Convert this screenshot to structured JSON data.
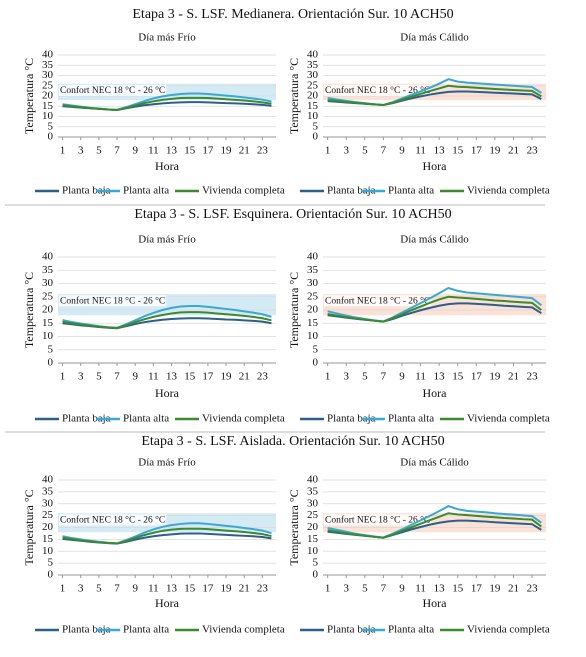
{
  "chart_data": [
    {
      "type": "line",
      "section_title": "Etapa 3 - S. LSF. Medianera. Orientación Sur. 10 ACH50",
      "title": "Día más Frío",
      "xlabel": "Hora",
      "ylabel": "Temperatura °C",
      "x": [
        1,
        2,
        3,
        4,
        5,
        6,
        7,
        8,
        9,
        10,
        11,
        12,
        13,
        14,
        15,
        16,
        17,
        18,
        19,
        20,
        21,
        22,
        23,
        24
      ],
      "xlim": [
        0.5,
        24.5
      ],
      "xticks": [
        1,
        3,
        5,
        7,
        9,
        11,
        13,
        15,
        17,
        19,
        21,
        23
      ],
      "ylim": [
        0,
        40
      ],
      "yticks": [
        0,
        5,
        10,
        15,
        20,
        25,
        30,
        35,
        40
      ],
      "grid": true,
      "band": {
        "range": [
          18,
          26
        ],
        "label": "Confort NEC 18 °C - 26 °C",
        "color": "#d4ebf6"
      },
      "series": [
        {
          "name": "Planta baja",
          "color": "#2e5f8a",
          "values": [
            15,
            14.7,
            14.3,
            14,
            13.7,
            13.4,
            13.2,
            14,
            14.8,
            15.5,
            16,
            16.4,
            16.7,
            16.9,
            17,
            17,
            16.9,
            16.7,
            16.5,
            16.4,
            16.2,
            16,
            15.7,
            15.2
          ]
        },
        {
          "name": "Planta alta",
          "color": "#3ba7d4",
          "values": [
            16,
            15.4,
            14.8,
            14.3,
            13.9,
            13.5,
            13.3,
            14.5,
            16,
            17.5,
            18.8,
            19.8,
            20.5,
            21,
            21.2,
            21.2,
            21,
            20.6,
            20.2,
            19.8,
            19.3,
            18.8,
            18.2,
            17.3
          ]
        },
        {
          "name": "Vivienda completa",
          "color": "#3c8a2e",
          "values": [
            15.5,
            15,
            14.5,
            14.1,
            13.8,
            13.4,
            13.2,
            14.2,
            15.4,
            16.5,
            17.4,
            18.1,
            18.6,
            19,
            19.1,
            19.1,
            19,
            18.7,
            18.4,
            18.1,
            17.8,
            17.4,
            16.9,
            16.2
          ]
        }
      ]
    },
    {
      "type": "line",
      "title": "Día más Cálido",
      "xlabel": "Hora",
      "ylabel": "Temperatura °C",
      "x": [
        1,
        2,
        3,
        4,
        5,
        6,
        7,
        8,
        9,
        10,
        11,
        12,
        13,
        14,
        15,
        16,
        17,
        18,
        19,
        20,
        21,
        22,
        23,
        24
      ],
      "xlim": [
        0.5,
        24.5
      ],
      "xticks": [
        1,
        3,
        5,
        7,
        9,
        11,
        13,
        15,
        17,
        19,
        21,
        23
      ],
      "ylim": [
        0,
        40
      ],
      "yticks": [
        0,
        5,
        10,
        15,
        20,
        25,
        30,
        35,
        40
      ],
      "grid": true,
      "band": {
        "range": [
          18,
          26
        ],
        "label": "Confort NEC 18 °C - 26 °C",
        "color": "#fbe1d6"
      },
      "series": [
        {
          "name": "Planta baja",
          "color": "#2e5f8a",
          "values": [
            17.5,
            17.2,
            16.8,
            16.5,
            16.2,
            15.9,
            15.6,
            16.5,
            17.7,
            18.8,
            19.8,
            20.7,
            21.4,
            22,
            22.2,
            22.2,
            22,
            21.8,
            21.6,
            21.4,
            21.2,
            21,
            20.8,
            18.5
          ]
        },
        {
          "name": "Planta alta",
          "color": "#3ba7d4",
          "values": [
            19,
            18.3,
            17.6,
            17,
            16.5,
            16,
            15.6,
            17,
            18.8,
            20.5,
            22.2,
            24,
            26,
            28.2,
            27,
            26.5,
            26.2,
            25.9,
            25.6,
            25.3,
            25,
            24.7,
            24.4,
            21.5
          ]
        },
        {
          "name": "Vivienda completa",
          "color": "#3c8a2e",
          "values": [
            18,
            17.6,
            17.1,
            16.7,
            16.3,
            15.9,
            15.6,
            16.7,
            18.2,
            19.6,
            21,
            22.4,
            23.7,
            25,
            24.5,
            24.3,
            24,
            23.7,
            23.4,
            23.2,
            22.9,
            22.7,
            22.5,
            19.8
          ]
        }
      ]
    },
    {
      "type": "line",
      "section_title": "Etapa 3 - S. LSF. Esquinera. Orientación Sur. 10 ACH50",
      "title": "Día más Frío",
      "xlabel": "Hora",
      "ylabel": "Temperatura °C",
      "x": [
        1,
        2,
        3,
        4,
        5,
        6,
        7,
        8,
        9,
        10,
        11,
        12,
        13,
        14,
        15,
        16,
        17,
        18,
        19,
        20,
        21,
        22,
        23,
        24
      ],
      "xlim": [
        0.5,
        24.5
      ],
      "xticks": [
        1,
        3,
        5,
        7,
        9,
        11,
        13,
        15,
        17,
        19,
        21,
        23
      ],
      "ylim": [
        0,
        40
      ],
      "yticks": [
        0,
        5,
        10,
        15,
        20,
        25,
        30,
        35,
        40
      ],
      "grid": true,
      "band": {
        "range": [
          18,
          26
        ],
        "label": "Confort NEC 18 °C - 26 °C",
        "color": "#d4ebf6"
      },
      "series": [
        {
          "name": "Planta baja",
          "color": "#2e5f8a",
          "values": [
            15,
            14.6,
            14.2,
            13.9,
            13.6,
            13.3,
            13.1,
            13.9,
            14.7,
            15.4,
            15.9,
            16.3,
            16.6,
            16.8,
            16.9,
            16.9,
            16.8,
            16.6,
            16.4,
            16.3,
            16.1,
            15.9,
            15.6,
            15
          ]
        },
        {
          "name": "Planta alta",
          "color": "#3ba7d4",
          "values": [
            16.2,
            15.5,
            14.9,
            14.4,
            13.9,
            13.5,
            13.3,
            14.6,
            16.1,
            17.6,
            18.9,
            20,
            20.8,
            21.3,
            21.5,
            21.5,
            21.2,
            20.8,
            20.4,
            20,
            19.5,
            19,
            18.4,
            17.4
          ]
        },
        {
          "name": "Vivienda completa",
          "color": "#3c8a2e",
          "values": [
            15.5,
            15,
            14.5,
            14.1,
            13.7,
            13.4,
            13.2,
            14.2,
            15.4,
            16.5,
            17.4,
            18.1,
            18.7,
            19.1,
            19.2,
            19.2,
            19,
            18.7,
            18.4,
            18.1,
            17.8,
            17.4,
            16.9,
            16.1
          ]
        }
      ]
    },
    {
      "type": "line",
      "title": "Día más Cálido",
      "xlabel": "Hora",
      "ylabel": "Temperatura °C",
      "x": [
        1,
        2,
        3,
        4,
        5,
        6,
        7,
        8,
        9,
        10,
        11,
        12,
        13,
        14,
        15,
        16,
        17,
        18,
        19,
        20,
        21,
        22,
        23,
        24
      ],
      "xlim": [
        0.5,
        24.5
      ],
      "xticks": [
        1,
        3,
        5,
        7,
        9,
        11,
        13,
        15,
        17,
        19,
        21,
        23
      ],
      "ylim": [
        0,
        40
      ],
      "yticks": [
        0,
        5,
        10,
        15,
        20,
        25,
        30,
        35,
        40
      ],
      "grid": true,
      "band": {
        "range": [
          18,
          26
        ],
        "label": "Confort NEC 18 °C - 26 °C",
        "color": "#fbe1d6"
      },
      "series": [
        {
          "name": "Planta baja",
          "color": "#2e5f8a",
          "values": [
            18,
            17.6,
            17.1,
            16.7,
            16.3,
            16,
            15.6,
            16.6,
            17.8,
            18.9,
            19.9,
            20.8,
            21.6,
            22.2,
            22.5,
            22.5,
            22.3,
            22.1,
            21.9,
            21.6,
            21.4,
            21.2,
            21,
            18.8
          ]
        },
        {
          "name": "Planta alta",
          "color": "#3ba7d4",
          "values": [
            19.5,
            18.7,
            17.9,
            17.2,
            16.6,
            16.1,
            15.7,
            17.2,
            19,
            20.8,
            22.6,
            24.4,
            26.3,
            28.3,
            27.2,
            26.6,
            26.3,
            26,
            25.7,
            25.4,
            25.1,
            24.8,
            24.5,
            21.8
          ]
        },
        {
          "name": "Vivienda completa",
          "color": "#3c8a2e",
          "values": [
            18.5,
            17.9,
            17.3,
            16.8,
            16.4,
            16,
            15.6,
            16.9,
            18.4,
            19.9,
            21.3,
            22.7,
            24,
            25,
            24.7,
            24.5,
            24.2,
            23.9,
            23.6,
            23.4,
            23.1,
            22.9,
            22.7,
            20
          ]
        }
      ]
    },
    {
      "type": "line",
      "section_title": "Etapa 3 - S. LSF. Aislada. Orientación Sur. 10 ACH50",
      "title": "Día más Frío",
      "xlabel": "Hora",
      "ylabel": "Temperatura °C",
      "x": [
        1,
        2,
        3,
        4,
        5,
        6,
        7,
        8,
        9,
        10,
        11,
        12,
        13,
        14,
        15,
        16,
        17,
        18,
        19,
        20,
        21,
        22,
        23,
        24
      ],
      "xlim": [
        0.5,
        24.5
      ],
      "xticks": [
        1,
        3,
        5,
        7,
        9,
        11,
        13,
        15,
        17,
        19,
        21,
        23
      ],
      "ylim": [
        0,
        40
      ],
      "yticks": [
        0,
        5,
        10,
        15,
        20,
        25,
        30,
        35,
        40
      ],
      "grid": true,
      "band": {
        "range": [
          18,
          26
        ],
        "label": "Confort NEC 18 °C - 26 °C",
        "color": "#d4ebf6"
      },
      "series": [
        {
          "name": "Planta baja",
          "color": "#2e5f8a",
          "values": [
            15.2,
            14.8,
            14.4,
            14,
            13.7,
            13.4,
            13.2,
            14,
            14.9,
            15.7,
            16.3,
            16.8,
            17.1,
            17.4,
            17.5,
            17.5,
            17.3,
            17.1,
            16.9,
            16.7,
            16.5,
            16.3,
            16,
            15.4
          ]
        },
        {
          "name": "Planta alta",
          "color": "#3ba7d4",
          "values": [
            16.3,
            15.6,
            15,
            14.4,
            14,
            13.6,
            13.3,
            14.7,
            16.2,
            17.8,
            19.2,
            20.3,
            21,
            21.5,
            21.8,
            21.8,
            21.5,
            21.1,
            20.7,
            20.3,
            19.8,
            19.3,
            18.7,
            17.6
          ]
        },
        {
          "name": "Vivienda completa",
          "color": "#3c8a2e",
          "values": [
            15.7,
            15.1,
            14.6,
            14.2,
            13.8,
            13.5,
            13.3,
            14.3,
            15.6,
            16.8,
            17.8,
            18.6,
            19.1,
            19.4,
            19.5,
            19.5,
            19.3,
            19,
            18.7,
            18.4,
            18.1,
            17.7,
            17.2,
            16.4
          ]
        }
      ]
    },
    {
      "type": "line",
      "title": "Día más Cálido",
      "xlabel": "Hora",
      "ylabel": "Temperatura °C",
      "x": [
        1,
        2,
        3,
        4,
        5,
        6,
        7,
        8,
        9,
        10,
        11,
        12,
        13,
        14,
        15,
        16,
        17,
        18,
        19,
        20,
        21,
        22,
        23,
        24
      ],
      "xlim": [
        0.5,
        24.5
      ],
      "xticks": [
        1,
        3,
        5,
        7,
        9,
        11,
        13,
        15,
        17,
        19,
        21,
        23
      ],
      "ylim": [
        0,
        40
      ],
      "yticks": [
        0,
        5,
        10,
        15,
        20,
        25,
        30,
        35,
        40
      ],
      "grid": true,
      "band": {
        "range": [
          18,
          26
        ],
        "label": "Confort NEC 18 °C - 26 °C",
        "color": "#fbe1d6"
      },
      "series": [
        {
          "name": "Planta baja",
          "color": "#2e5f8a",
          "values": [
            18.2,
            17.8,
            17.3,
            16.9,
            16.5,
            16.1,
            15.7,
            16.8,
            18,
            19.2,
            20.2,
            21.2,
            22,
            22.6,
            22.9,
            22.9,
            22.7,
            22.5,
            22.2,
            22,
            21.8,
            21.6,
            21.4,
            19
          ]
        },
        {
          "name": "Planta alta",
          "color": "#3ba7d4",
          "values": [
            19.8,
            19,
            18.2,
            17.4,
            16.8,
            16.2,
            15.8,
            17.4,
            19.2,
            21.1,
            23,
            24.9,
            26.9,
            29,
            27.7,
            27,
            26.7,
            26.4,
            26,
            25.7,
            25.4,
            25.1,
            24.8,
            22
          ]
        },
        {
          "name": "Vivienda completa",
          "color": "#3c8a2e",
          "values": [
            18.8,
            18.2,
            17.6,
            17,
            16.5,
            16.1,
            15.7,
            17,
            18.6,
            20.1,
            21.6,
            23.1,
            24.5,
            26,
            25.5,
            25.2,
            24.9,
            24.6,
            24.3,
            24,
            23.8,
            23.5,
            23.3,
            20.4
          ]
        }
      ]
    }
  ]
}
